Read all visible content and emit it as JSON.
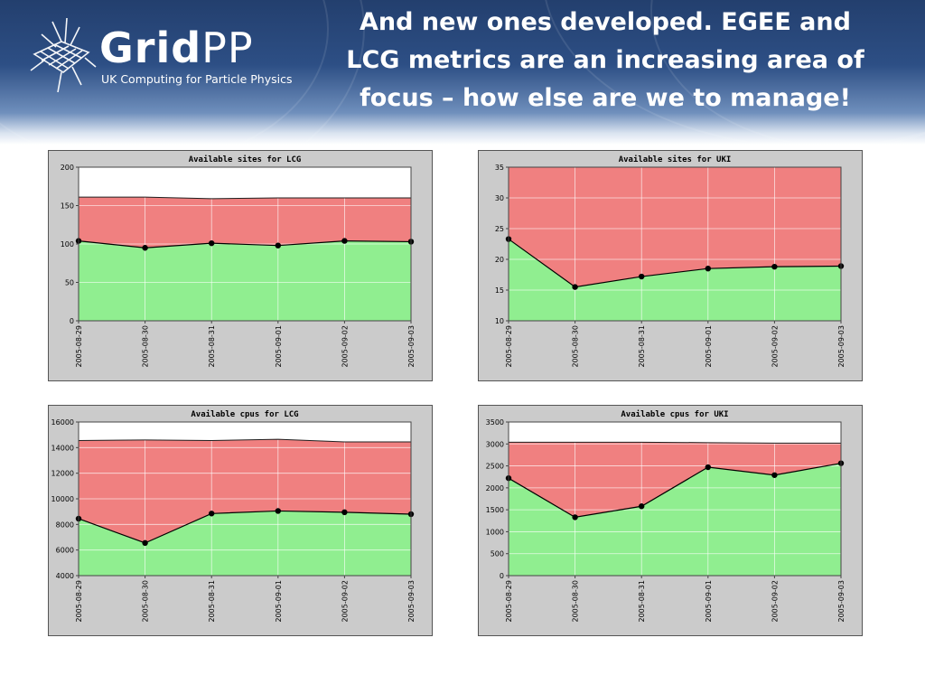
{
  "header": {
    "logo_main": "Grid",
    "logo_accent": "PP",
    "logo_subtitle": "UK Computing for Particle Physics",
    "title_lines": [
      "And new ones developed. EGEE and",
      "LCG metrics are an increasing area of",
      "focus – how else are we to manage!"
    ]
  },
  "colors": {
    "available": "#90ee90",
    "unavailable": "#f08080",
    "panel_bg": "#cbcbcb",
    "plot_bg": "#ffffff",
    "marker": "#000000"
  },
  "chart_data": [
    {
      "type": "area",
      "title": "Available sites for LCG",
      "x": [
        "2005-08-29",
        "2005-08-30",
        "2005-08-31",
        "2005-09-01",
        "2005-09-02",
        "2005-09-03"
      ],
      "series": [
        {
          "values": [
            104,
            95,
            101,
            98,
            104,
            103
          ],
          "color": "#90ee90",
          "markers": true
        },
        {
          "values": [
            161,
            161,
            159,
            160,
            160,
            160
          ],
          "color": "#f08080",
          "markers": false
        }
      ],
      "ylim": [
        0,
        200
      ],
      "yticks": [
        0,
        50,
        100,
        150,
        200
      ],
      "grid": true
    },
    {
      "type": "area",
      "title": "Available sites for UKI",
      "x": [
        "2005-08-29",
        "2005-08-30",
        "2005-08-31",
        "2005-09-01",
        "2005-09-02",
        "2005-09-03"
      ],
      "series": [
        {
          "values": [
            23.3,
            15.5,
            17.2,
            18.5,
            18.8,
            18.9
          ],
          "color": "#90ee90",
          "markers": true
        },
        {
          "values": [
            35,
            35,
            35,
            35,
            35,
            35
          ],
          "color": "#f08080",
          "markers": false
        }
      ],
      "ylim": [
        10,
        35
      ],
      "yticks": [
        10,
        15,
        20,
        25,
        30,
        35
      ],
      "grid": true
    },
    {
      "type": "area",
      "title": "Available cpus for LCG",
      "x": [
        "2005-08-29",
        "2005-08-30",
        "2005-08-31",
        "2005-09-01",
        "2005-09-02",
        "2005-09-03"
      ],
      "series": [
        {
          "values": [
            8450,
            6550,
            8850,
            9050,
            8950,
            8800
          ],
          "color": "#90ee90",
          "markers": true
        },
        {
          "values": [
            14550,
            14600,
            14550,
            14650,
            14450,
            14450
          ],
          "color": "#f08080",
          "markers": false
        }
      ],
      "ylim": [
        4000,
        16000
      ],
      "yticks": [
        4000,
        6000,
        8000,
        10000,
        12000,
        14000,
        16000
      ],
      "grid": true
    },
    {
      "type": "area",
      "title": "Available cpus for UKI",
      "x": [
        "2005-08-29",
        "2005-08-30",
        "2005-08-31",
        "2005-09-01",
        "2005-09-02",
        "2005-09-03"
      ],
      "series": [
        {
          "values": [
            2220,
            1330,
            1580,
            2470,
            2290,
            2560
          ],
          "color": "#90ee90",
          "markers": true
        },
        {
          "values": [
            3040,
            3040,
            3040,
            3030,
            3020,
            3020
          ],
          "color": "#f08080",
          "markers": false
        }
      ],
      "ylim": [
        0,
        3500
      ],
      "yticks": [
        0,
        500,
        1000,
        1500,
        2000,
        2500,
        3000,
        3500
      ],
      "grid": true
    }
  ]
}
